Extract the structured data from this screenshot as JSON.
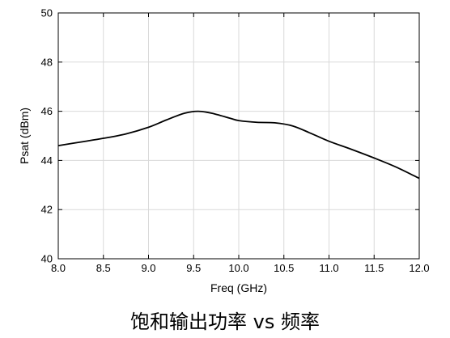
{
  "caption": "饱和输出功率 vs 频率",
  "chart_data": {
    "type": "line",
    "title": "",
    "xlabel": "Freq (GHz)",
    "ylabel": "Psat (dBm)",
    "xlim": [
      8.0,
      12.0
    ],
    "ylim": [
      40,
      50
    ],
    "xticks": [
      "8.0",
      "8.5",
      "9.0",
      "9.5",
      "10.0",
      "10.5",
      "11.0",
      "11.5",
      "12.0"
    ],
    "yticks": [
      "40",
      "42",
      "44",
      "46",
      "48",
      "50"
    ],
    "grid": true,
    "legend": "none",
    "series": [
      {
        "color": "#000000",
        "x": [
          8.0,
          8.25,
          8.5,
          8.75,
          9.0,
          9.2,
          9.4,
          9.55,
          9.7,
          9.9,
          10.0,
          10.2,
          10.4,
          10.6,
          10.8,
          11.0,
          11.25,
          11.5,
          11.75,
          12.0
        ],
        "y": [
          44.6,
          44.75,
          44.9,
          45.08,
          45.35,
          45.65,
          45.92,
          46.0,
          45.92,
          45.72,
          45.62,
          45.55,
          45.53,
          45.4,
          45.1,
          44.78,
          44.45,
          44.1,
          43.72,
          43.27
        ]
      }
    ]
  }
}
